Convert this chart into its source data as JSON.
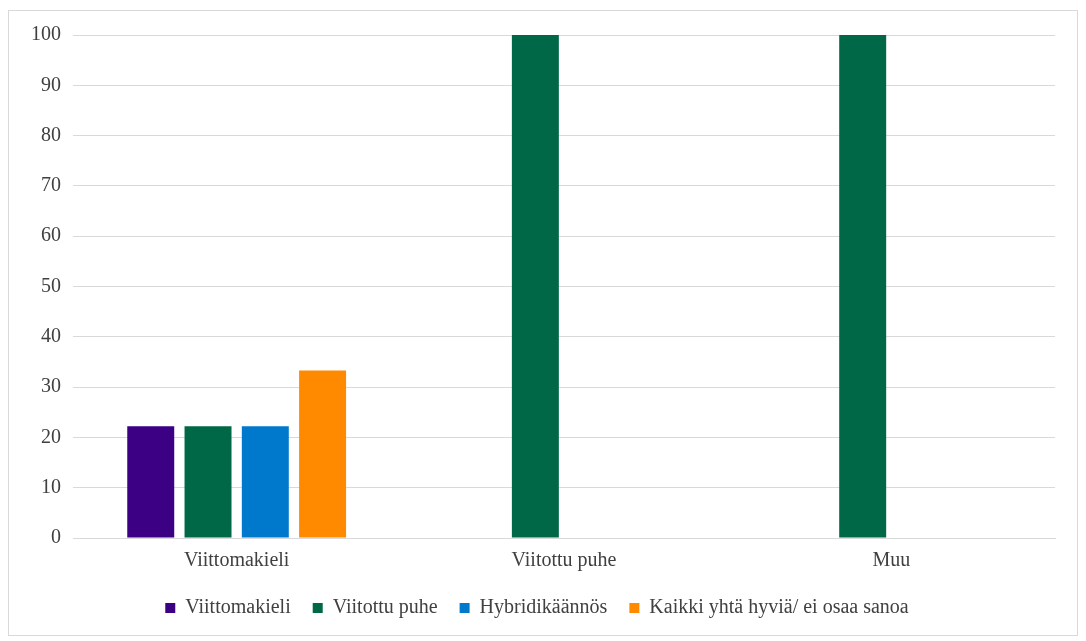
{
  "chart_data": {
    "type": "bar",
    "categories": [
      "Viittomakieli",
      "Viitottu puhe",
      "Muu"
    ],
    "series": [
      {
        "name": "Viittomakieli",
        "color": "#3b0084",
        "values": [
          22.2,
          null,
          null
        ]
      },
      {
        "name": "Viitottu puhe",
        "color": "#006747",
        "values": [
          22.2,
          100,
          100
        ]
      },
      {
        "name": "Hybridikäännös",
        "color": "#0078cc",
        "values": [
          22.2,
          null,
          null
        ]
      },
      {
        "name": "Kaikki yhtä hyviä/ ei osaa sanoa",
        "color": "#ff8a00",
        "values": [
          33.3,
          null,
          null
        ]
      }
    ],
    "ylim": [
      0,
      100
    ],
    "yticks": [
      0,
      10,
      20,
      30,
      40,
      50,
      60,
      70,
      80,
      90,
      100
    ],
    "grid": "y",
    "legend": "bottom"
  }
}
